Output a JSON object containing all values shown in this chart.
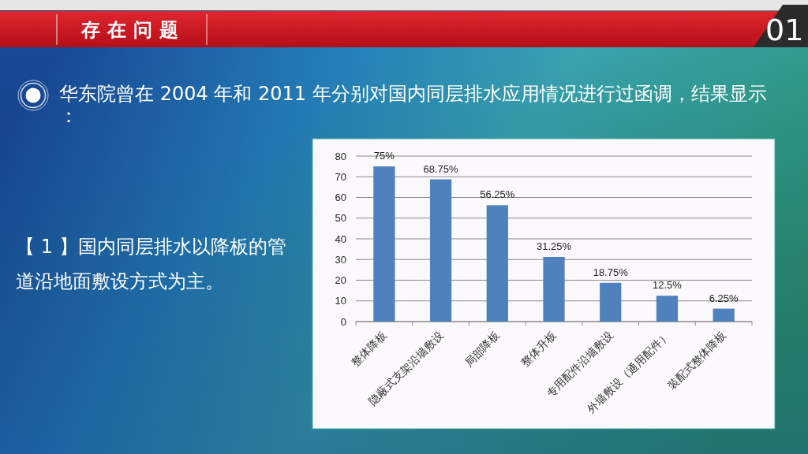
{
  "chart_data": {
    "type": "bar",
    "title": "存在问题",
    "subtitle": "华东院曾在 2004 年和 2011 年分别对国内同层排水应用情况进行过函调，结果显示：",
    "annotations": [
      "01",
      "【 1 】国内同层排水以降板的管道沿地面敷设方式为主。"
    ],
    "categories": [
      "整体降板",
      "隐蔽式支架沿墙敷设",
      "局部降板",
      "整体升板",
      "专用配件沿墙敷设",
      "外墙敷设（通用配件）",
      "装配式整体降板"
    ],
    "values": [
      75,
      68.75,
      56.25,
      31.25,
      18.75,
      12.5,
      6.25
    ],
    "value_labels": [
      "75%",
      "68.75%",
      "56.25%",
      "31.25%",
      "18.75%",
      "12.5%",
      "6.25%"
    ],
    "color": "#4f81bd",
    "ylim": [
      0,
      80
    ],
    "yticks": [
      0,
      10,
      20,
      30,
      40,
      50,
      60,
      70,
      80
    ],
    "grid": "y"
  }
}
